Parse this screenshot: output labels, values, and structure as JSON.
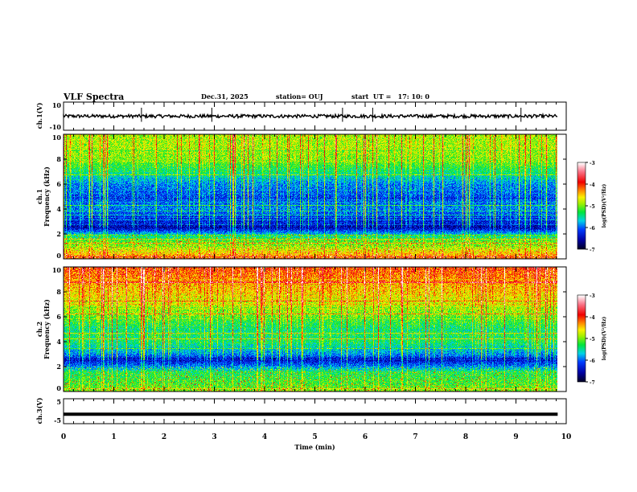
{
  "header": {
    "title": "VLF Spectra",
    "date": "Dec.31, 2025",
    "station": "station= OUJ",
    "start": "start  UT =   17: 10: 0"
  },
  "chart_data": [
    {
      "type": "line",
      "name": "ch1-waveform",
      "ylabel": "ch.1(V)",
      "ylim": [
        -10,
        10
      ],
      "yticks": [
        "10",
        "-10"
      ],
      "xlim": [
        0,
        10
      ],
      "data_end_min": 9.83,
      "baseline_v": 0,
      "noise_amplitude_v": 1.2,
      "spikes_min": [
        1.55,
        2.95,
        5.55,
        6.15,
        9.1
      ]
    },
    {
      "type": "heatmap",
      "name": "ch1-spectrogram",
      "ylabel": "ch.1\nFrequency (kHz)",
      "ylabel_top": "ch.1",
      "ylabel_bottom": "Frequency  (kHz)",
      "ylim": [
        0,
        10
      ],
      "yticks": [
        "0",
        "2",
        "4",
        "6",
        "8",
        "10"
      ],
      "xlim": [
        0,
        10
      ],
      "colorbar": {
        "label": "log(PSD)(V²/Hz)",
        "range": [
          -7,
          -3
        ],
        "ticks": [
          "-3",
          "-4",
          "-5",
          "-6",
          "-7"
        ]
      },
      "profile_khz": [
        0,
        0.5,
        1,
        1.5,
        2,
        2.5,
        3,
        4,
        5,
        6,
        7,
        8,
        9,
        10
      ],
      "profile_logpsd": [
        -4.3,
        -4.6,
        -5.0,
        -5.2,
        -5.8,
        -6.6,
        -6.4,
        -6.0,
        -6.2,
        -6.0,
        -5.5,
        -5.1,
        -5.0,
        -5.0
      ]
    },
    {
      "type": "heatmap",
      "name": "ch2-spectrogram",
      "ylabel_top": "ch.2",
      "ylabel_bottom": "Frequency  (kHz)",
      "ylim": [
        0,
        10
      ],
      "yticks": [
        "0",
        "2",
        "4",
        "6",
        "8",
        "10"
      ],
      "xlim": [
        0,
        10
      ],
      "colorbar": {
        "label": "log(PSD)(V²/Hz)",
        "range": [
          -7,
          -3
        ],
        "ticks": [
          "-3",
          "-4",
          "-5",
          "-6",
          "-7"
        ]
      },
      "profile_khz": [
        0,
        0.5,
        1,
        1.5,
        2,
        2.5,
        3,
        4,
        5,
        6,
        7,
        8,
        9,
        10
      ],
      "profile_logpsd": [
        -5.0,
        -5.2,
        -5.3,
        -5.4,
        -6.0,
        -6.5,
        -6.0,
        -5.5,
        -5.6,
        -5.3,
        -5.0,
        -4.8,
        -4.6,
        -4.4
      ]
    },
    {
      "type": "line",
      "name": "ch3-waveform",
      "ylabel": "ch.3(V)",
      "ylim": [
        -5,
        5
      ],
      "yticks": [
        "5",
        "-5"
      ],
      "xlim": [
        0,
        10
      ],
      "data_end_min": 9.83,
      "baseline_v": -1.2
    }
  ],
  "xaxis": {
    "label": "Time  (min)",
    "ticks": [
      "0",
      "1",
      "2",
      "3",
      "4",
      "5",
      "6",
      "7",
      "8",
      "9",
      "10"
    ]
  }
}
